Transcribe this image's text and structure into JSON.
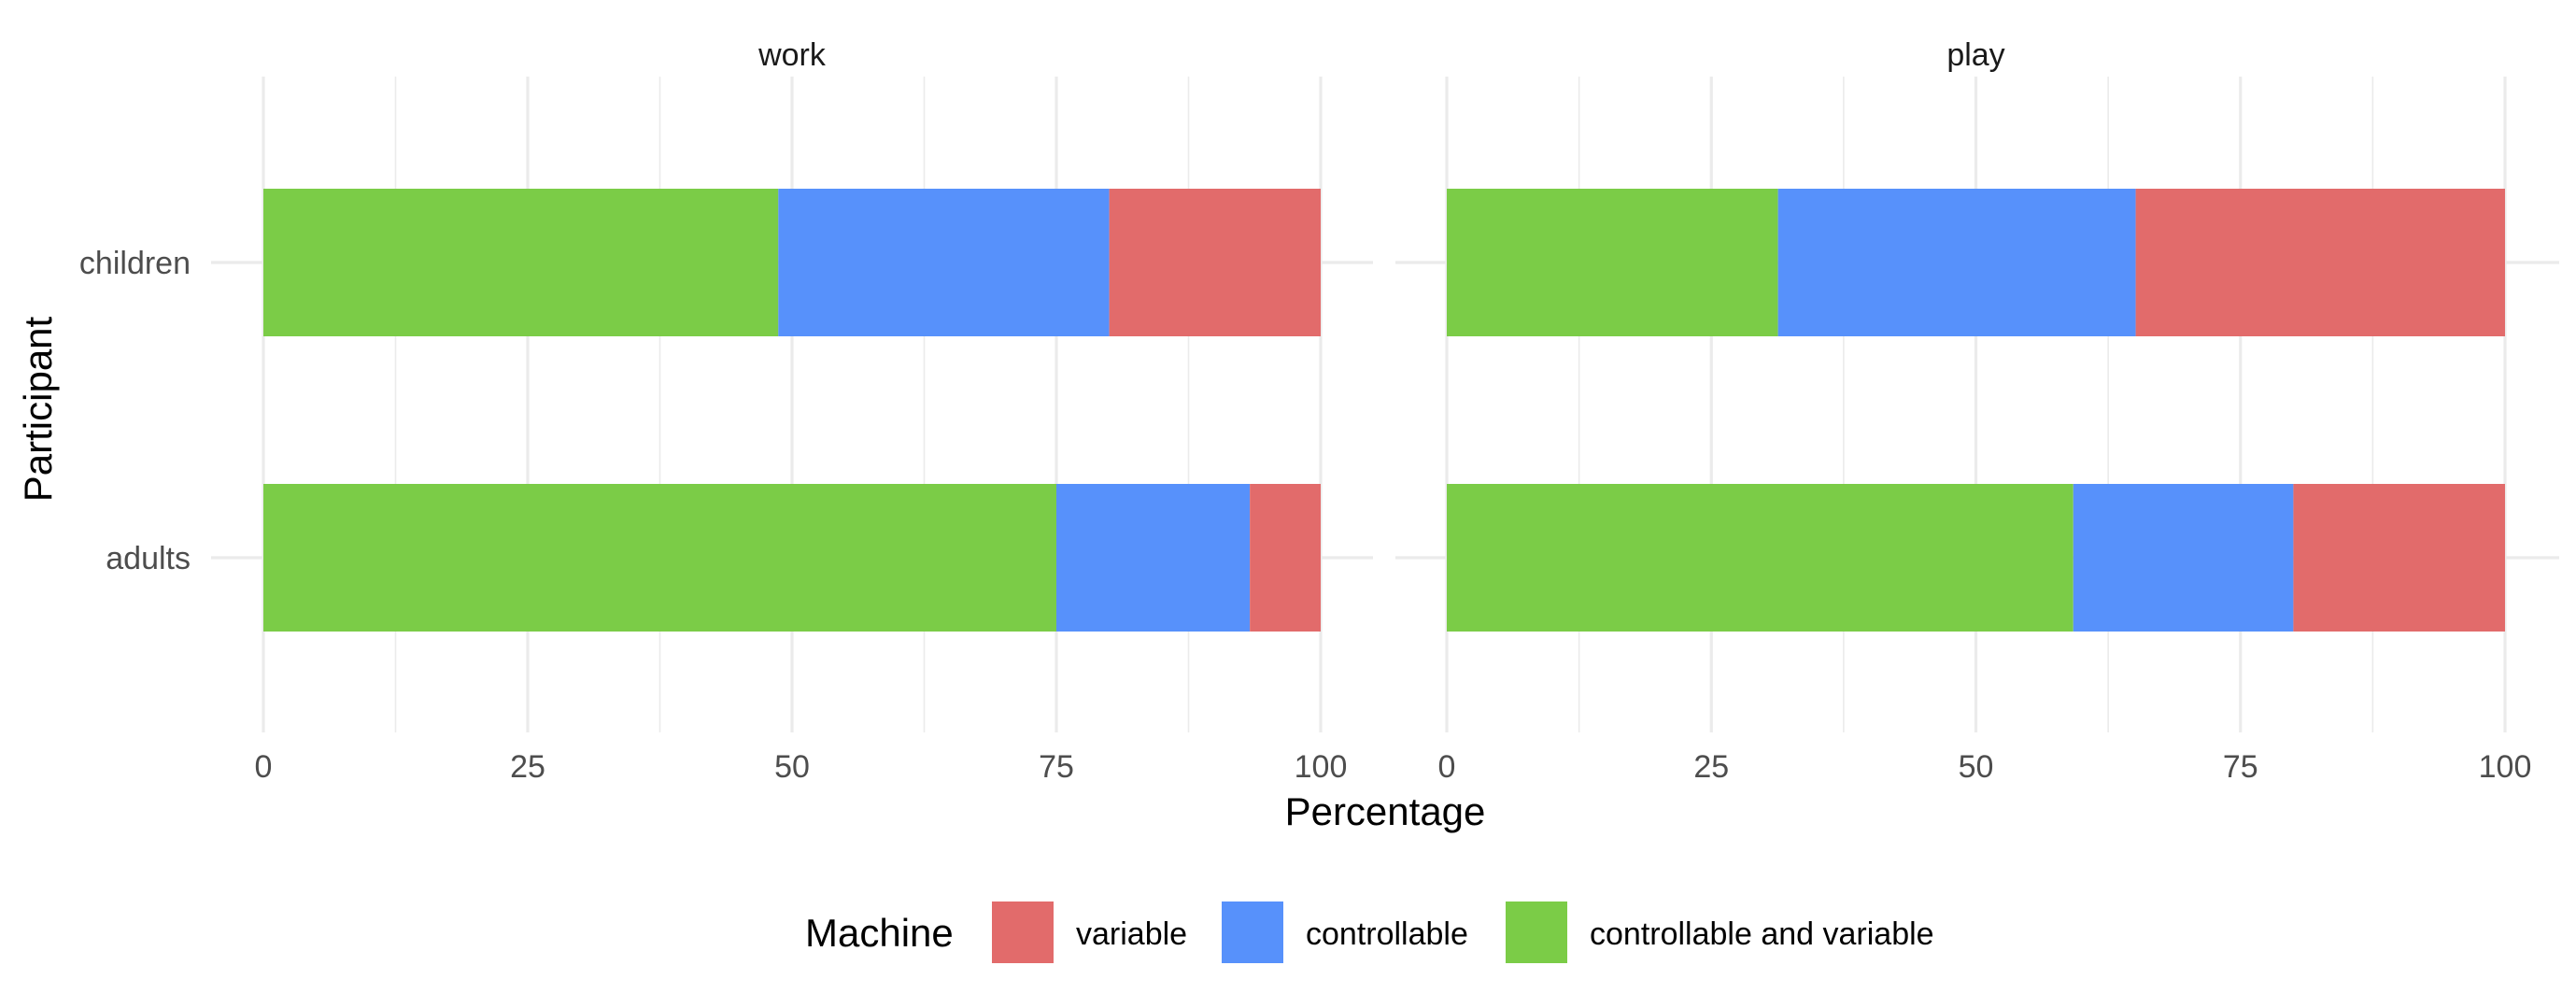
{
  "chart_data": {
    "type": "bar",
    "orientation": "horizontal",
    "stacked": true,
    "xlabel": "Percentage",
    "ylabel": "Participant",
    "xlim": [
      0,
      100
    ],
    "xticks": [
      "0",
      "25",
      "50",
      "75",
      "100"
    ],
    "categories": [
      "children",
      "adults"
    ],
    "legend": {
      "title": "Machine",
      "position": "bottom",
      "entries": [
        {
          "name": "variable",
          "color": "#E26B6B"
        },
        {
          "name": "controllable",
          "color": "#5791FB"
        },
        {
          "name": "controllable and variable",
          "color": "#7BCC47"
        }
      ]
    },
    "stack_order": [
      "controllable and variable",
      "controllable",
      "variable"
    ],
    "facets": [
      {
        "title": "work",
        "series": [
          {
            "name": "controllable and variable",
            "values": [
              48.7,
              75.0
            ]
          },
          {
            "name": "controllable",
            "values": [
              31.3,
              18.3
            ]
          },
          {
            "name": "variable",
            "values": [
              20.0,
              6.7
            ]
          }
        ]
      },
      {
        "title": "play",
        "series": [
          {
            "name": "controllable and variable",
            "values": [
              31.3,
              59.2
            ]
          },
          {
            "name": "controllable",
            "values": [
              33.8,
              20.8
            ]
          },
          {
            "name": "variable",
            "values": [
              34.9,
              20.0
            ]
          }
        ]
      }
    ]
  }
}
